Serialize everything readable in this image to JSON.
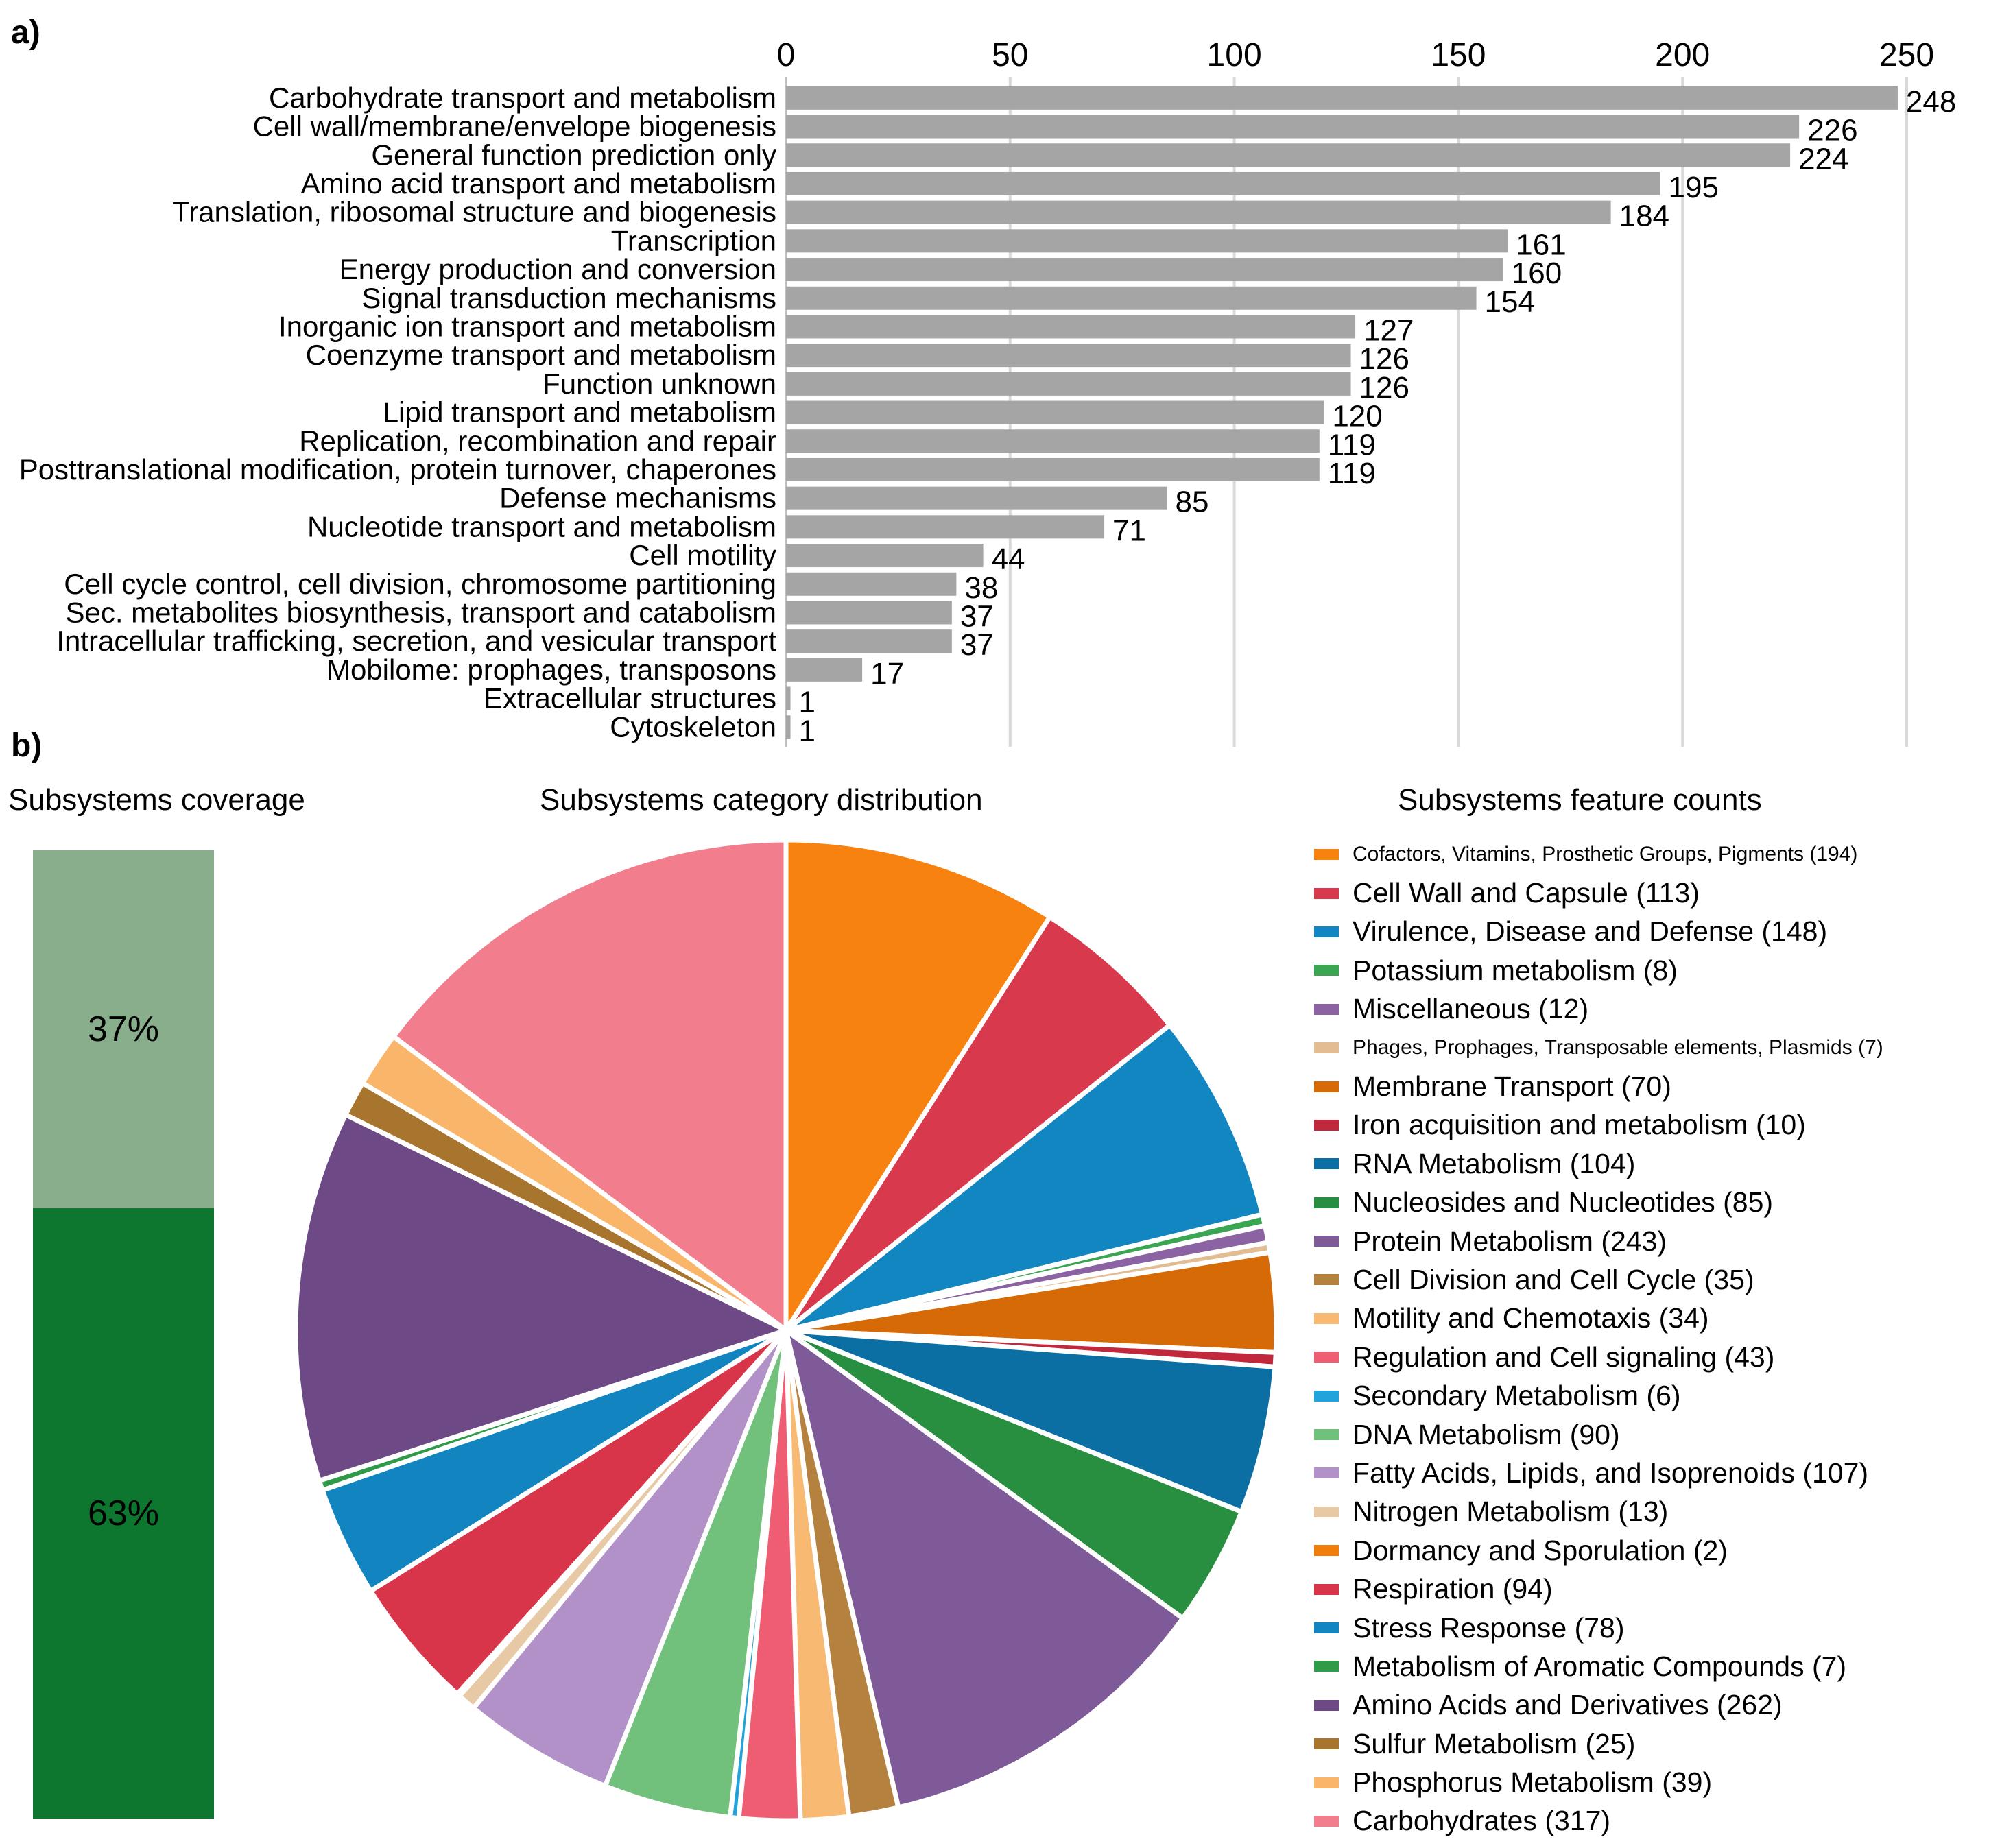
{
  "panel_a_label": "a)",
  "panel_b_label": "b)",
  "chart_data": [
    {
      "type": "bar",
      "orientation": "horizontal",
      "xlim": [
        0,
        250
      ],
      "xticks": [
        0,
        50,
        100,
        150,
        200,
        250
      ],
      "bar_color": "#a5a5a5",
      "gridlines": true,
      "categories": [
        "Carbohydrate transport and metabolism",
        "Cell wall/membrane/envelope biogenesis",
        "General function prediction only",
        "Amino acid transport and metabolism",
        "Translation, ribosomal structure and biogenesis",
        "Transcription",
        "Energy production and conversion",
        "Signal transduction mechanisms",
        "Inorganic ion transport and metabolism",
        "Coenzyme transport and metabolism",
        "Function unknown",
        "Lipid transport and metabolism",
        "Replication, recombination and repair",
        "Posttranslational modification, protein turnover, chaperones",
        "Defense mechanisms",
        "Nucleotide transport and metabolism",
        "Cell motility",
        "Cell cycle control, cell division, chromosome partitioning",
        "Sec. metabolites biosynthesis, transport and catabolism",
        "Intracellular trafficking, secretion, and vesicular transport",
        "Mobilome: prophages, transposons",
        "Extracellular structures",
        "Cytoskeleton"
      ],
      "values": [
        248,
        226,
        224,
        195,
        184,
        161,
        160,
        154,
        127,
        126,
        126,
        120,
        119,
        119,
        85,
        71,
        44,
        38,
        37,
        37,
        17,
        1,
        1
      ]
    },
    {
      "type": "stacked_bar",
      "title": "Subsystems coverage",
      "segments": [
        {
          "label": "37%",
          "value": 37,
          "color": "#88ae8c"
        },
        {
          "label": "63%",
          "value": 63,
          "color": "#0e772f"
        }
      ]
    },
    {
      "type": "pie",
      "title": "Subsystems category distribution",
      "slices": [
        {
          "label": "Cofactors, Vitamins, Prosthetic Groups, Pigments (194)",
          "value": 194,
          "color": "#f7820f",
          "small": true
        },
        {
          "label": "Cell Wall and Capsule (113)",
          "value": 113,
          "color": "#d8394c"
        },
        {
          "label": "Virulence, Disease and Defense (148)",
          "value": 148,
          "color": "#1286c0"
        },
        {
          "label": "Potassium metabolism (8)",
          "value": 8,
          "color": "#3aa652"
        },
        {
          "label": "Miscellaneous (12)",
          "value": 12,
          "color": "#8b63a2"
        },
        {
          "label": "Phages, Prophages, Transposable elements, Plasmids (7)",
          "value": 7,
          "color": "#e2bd94",
          "small": true
        },
        {
          "label": "Membrane Transport (70)",
          "value": 70,
          "color": "#d66a07"
        },
        {
          "label": "Iron acquisition and metabolism (10)",
          "value": 10,
          "color": "#c2283c"
        },
        {
          "label": " RNA Metabolism  (104)",
          "value": 104,
          "color": "#0b6fa3"
        },
        {
          "label": "Nucleosides and Nucleotides (85)",
          "value": 85,
          "color": "#278f3f"
        },
        {
          "label": "Protein Metabolism (243)",
          "value": 243,
          "color": "#7e5a98"
        },
        {
          "label": "Cell Division and Cell Cycle (35)",
          "value": 35,
          "color": "#b5813f"
        },
        {
          "label": "Motility and Chemotaxis (34)",
          "value": 34,
          "color": "#f8ba73"
        },
        {
          "label": "Regulation and Cell signaling (43)",
          "value": 43,
          "color": "#ee5d72"
        },
        {
          "label": "Secondary Metabolism (6)",
          "value": 6,
          "color": "#23a3db"
        },
        {
          "label": "DNA Metabolism (90)",
          "value": 90,
          "color": "#71c17d"
        },
        {
          "label": "Fatty Acids, Lipids, and Isoprenoids (107)",
          "value": 107,
          "color": "#b191c7"
        },
        {
          "label": "Nitrogen Metabolism (13)",
          "value": 13,
          "color": "#e8c9a5"
        },
        {
          "label": "Dormancy and Sporulation (2)",
          "value": 2,
          "color": "#f07e0c"
        },
        {
          "label": "Respiration (94)",
          "value": 94,
          "color": "#d9354a"
        },
        {
          "label": "Stress Response (78)",
          "value": 78,
          "color": "#1285c1"
        },
        {
          "label": "Metabolism of Aromatic Compounds (7)",
          "value": 7,
          "color": "#2f9a48"
        },
        {
          "label": "Amino Acids and Derivatives (262)",
          "value": 262,
          "color": "#6d4a86"
        },
        {
          "label": "Sulfur Metabolism (25)",
          "value": 25,
          "color": "#a8752f"
        },
        {
          "label": "Phosphorus Metabolism (39)",
          "value": 39,
          "color": "#f9b66a"
        },
        {
          "label": "Carbohydrates (317)",
          "value": 317,
          "color": "#f27d8d"
        }
      ]
    }
  ],
  "legend_title": "Subsystems feature counts"
}
